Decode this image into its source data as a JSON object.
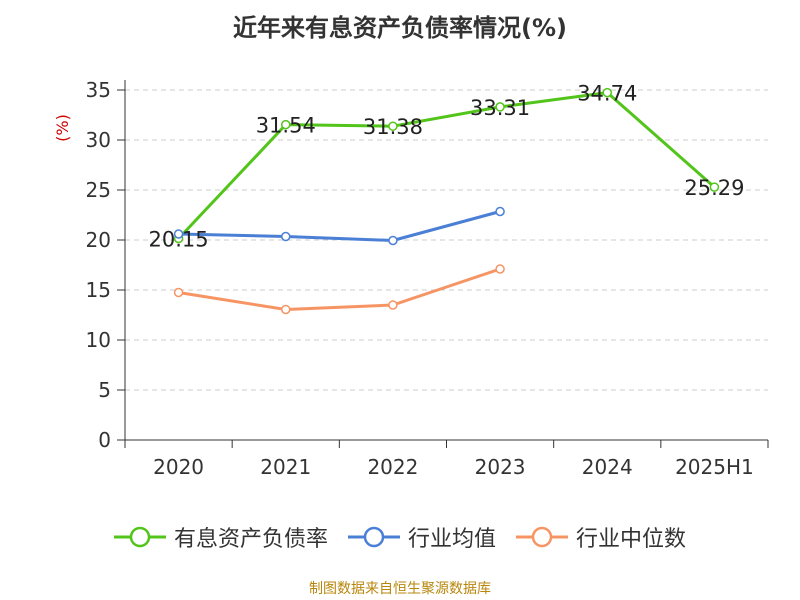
{
  "title": "近年来有息资产负债率情况(%)",
  "source": "制图数据来自恒生聚源数据库",
  "colors": {
    "series1": "#52c41a",
    "series2": "#4a7fd6",
    "series3": "#f79463",
    "axis": "#333333",
    "grid": "#cccccc",
    "ylabel": "#cc0000"
  },
  "chart_data": {
    "type": "line",
    "categories": [
      "2020",
      "2021",
      "2022",
      "2023",
      "2024",
      "2025H1"
    ],
    "ylabel": "(%)",
    "ylim": [
      0,
      35
    ],
    "yticks": [
      0,
      5,
      10,
      15,
      20,
      25,
      30,
      35
    ],
    "grid": true,
    "legend_position": "bottom",
    "series": [
      {
        "name": "有息资产负债率",
        "values": [
          20.15,
          31.54,
          31.38,
          33.31,
          34.74,
          25.29
        ],
        "labels": [
          "20.15",
          "31.54",
          "31.38",
          "33.31",
          "34.74",
          "25.29"
        ],
        "show_labels": true
      },
      {
        "name": "行业均值",
        "values": [
          20.6,
          20.35,
          19.95,
          22.85,
          null,
          null
        ],
        "show_labels": false
      },
      {
        "name": "行业中位数",
        "values": [
          14.75,
          13.05,
          13.5,
          17.1,
          null,
          null
        ],
        "show_labels": false
      }
    ]
  }
}
